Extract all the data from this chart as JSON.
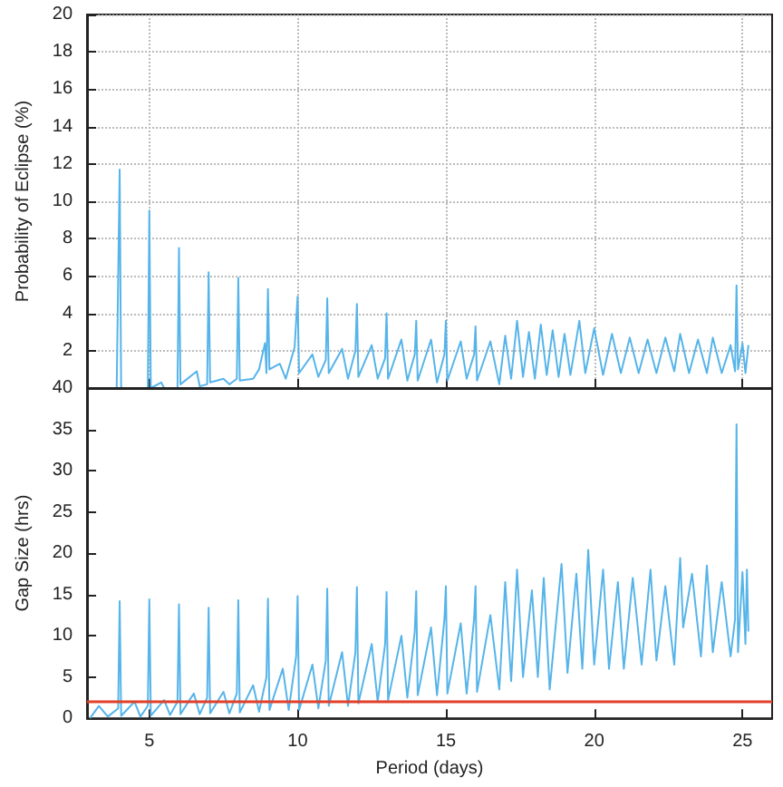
{
  "chart_data": [
    {
      "type": "line",
      "ylabel": "Probability of Eclipse (%)",
      "xlim": [
        2.9,
        26
      ],
      "xticks": [
        5,
        10,
        15,
        20,
        25
      ],
      "ylim": [
        0,
        20
      ],
      "yticks": [
        {
          "value": 0,
          "label": null
        },
        2,
        4,
        6,
        8,
        10,
        12,
        14,
        16,
        18,
        20
      ],
      "grid": true,
      "tick_labels": "y",
      "marker": "none",
      "series": [
        {
          "color": "#56b4e9",
          "x": [
            3.0,
            3.9,
            4.0,
            4.05,
            4.95,
            5.0,
            5.05,
            5.4,
            5.5,
            5.95,
            6.0,
            6.05,
            6.6,
            6.7,
            6.95,
            7.0,
            7.05,
            7.5,
            7.7,
            7.95,
            8.0,
            8.05,
            8.5,
            8.7,
            8.9,
            8.95,
            9.0,
            9.05,
            9.4,
            9.6,
            9.9,
            10.0,
            10.05,
            10.5,
            10.7,
            10.95,
            11.0,
            11.05,
            11.5,
            11.7,
            11.95,
            12.0,
            12.05,
            12.5,
            12.7,
            12.95,
            13.0,
            13.05,
            13.5,
            13.7,
            13.95,
            14.0,
            14.05,
            14.5,
            14.7,
            14.95,
            15.0,
            15.05,
            15.5,
            15.7,
            15.95,
            16.0,
            16.05,
            16.5,
            16.8,
            17.0,
            17.2,
            17.4,
            17.6,
            17.8,
            18.0,
            18.2,
            18.4,
            18.6,
            18.8,
            19.0,
            19.2,
            19.5,
            19.7,
            20.0,
            20.3,
            20.6,
            20.9,
            21.2,
            21.5,
            21.8,
            22.1,
            22.4,
            22.7,
            22.9,
            23.2,
            23.5,
            23.8,
            24.0,
            24.3,
            24.6,
            24.75,
            24.8,
            24.85,
            25.0,
            25.1,
            25.2
          ],
          "values": [
            0,
            0,
            11.7,
            0,
            0,
            9.5,
            0,
            0.3,
            0,
            0,
            7.5,
            0.2,
            0.9,
            0.1,
            0.2,
            6.2,
            0.3,
            0.5,
            0.2,
            0.5,
            5.9,
            0.4,
            0.5,
            1.0,
            2.4,
            0.8,
            5.3,
            1.0,
            1.3,
            0.5,
            2.2,
            4.9,
            0.8,
            1.8,
            0.6,
            1.5,
            4.8,
            0.8,
            2.1,
            0.5,
            2.0,
            4.5,
            0.6,
            2.3,
            0.5,
            1.6,
            4.0,
            0.5,
            2.6,
            0.4,
            1.8,
            3.6,
            0.4,
            2.6,
            0.3,
            1.8,
            3.6,
            0.4,
            2.5,
            0.5,
            1.8,
            3.3,
            0.4,
            2.5,
            0.2,
            2.8,
            0.5,
            3.6,
            0.6,
            3.0,
            0.5,
            3.4,
            0.7,
            3.1,
            0.6,
            2.9,
            0.7,
            3.6,
            0.8,
            3.2,
            0.7,
            2.9,
            0.8,
            2.7,
            0.8,
            2.6,
            0.8,
            2.7,
            0.9,
            2.9,
            0.8,
            2.6,
            0.8,
            2.7,
            0.8,
            2.3,
            0.9,
            5.5,
            1.0,
            2.4,
            0.8,
            2.3
          ]
        }
      ]
    },
    {
      "type": "line",
      "xlabel": "Period (days)",
      "ylabel": "Gap Size (hrs)",
      "xlim": [
        2.9,
        26
      ],
      "xticks": [
        5,
        10,
        15,
        20,
        25
      ],
      "ylim": [
        0,
        40
      ],
      "yticks": [
        0,
        5,
        10,
        15,
        20,
        25,
        30,
        35,
        40
      ],
      "grid": false,
      "marker": "none",
      "ref_lines": [
        {
          "axis": "y",
          "value": 2,
          "color": "#e0402a"
        }
      ],
      "series": [
        {
          "color": "#56b4e9",
          "x": [
            3.0,
            3.3,
            3.6,
            3.95,
            4.0,
            4.05,
            4.5,
            4.7,
            4.95,
            5.0,
            5.05,
            5.5,
            5.7,
            5.95,
            6.0,
            6.05,
            6.5,
            6.7,
            6.95,
            7.0,
            7.05,
            7.5,
            7.7,
            7.95,
            8.0,
            8.05,
            8.5,
            8.7,
            8.95,
            9.0,
            9.05,
            9.5,
            9.7,
            9.95,
            10.0,
            10.05,
            10.5,
            10.7,
            10.95,
            11.0,
            11.05,
            11.5,
            11.7,
            11.95,
            12.0,
            12.05,
            12.5,
            12.7,
            12.95,
            13.0,
            13.05,
            13.5,
            13.7,
            13.95,
            14.0,
            14.05,
            14.5,
            14.7,
            14.95,
            15.0,
            15.05,
            15.5,
            15.7,
            15.95,
            16.0,
            16.05,
            16.5,
            16.8,
            17.0,
            17.2,
            17.4,
            17.6,
            17.9,
            18.1,
            18.3,
            18.5,
            18.9,
            19.1,
            19.4,
            19.6,
            19.8,
            20.0,
            20.3,
            20.5,
            20.8,
            21.0,
            21.3,
            21.6,
            21.9,
            22.1,
            22.4,
            22.7,
            22.9,
            23.0,
            23.3,
            23.6,
            23.8,
            24.0,
            24.3,
            24.6,
            24.75,
            24.8,
            24.85,
            25.0,
            25.1,
            25.15,
            25.2
          ],
          "values": [
            0,
            1.5,
            0.2,
            1.2,
            14.2,
            0.3,
            2.0,
            0.2,
            1.5,
            14.4,
            0.3,
            2.2,
            0.4,
            2.0,
            13.8,
            0.5,
            3.0,
            0.5,
            2.5,
            13.4,
            0.6,
            3.2,
            0.6,
            3.0,
            14.3,
            0.7,
            4.0,
            0.8,
            5.0,
            14.5,
            1.0,
            6.0,
            1.0,
            7.5,
            14.8,
            1.0,
            6.5,
            1.2,
            7.0,
            15.7,
            1.5,
            8.0,
            1.5,
            8.0,
            15.9,
            1.8,
            9.0,
            2.0,
            9.0,
            15.3,
            2.2,
            10.0,
            2.5,
            10.5,
            15.4,
            2.8,
            11.0,
            2.8,
            12.0,
            16.0,
            3.0,
            11.5,
            3.0,
            12.0,
            16.0,
            3.2,
            12.5,
            3.5,
            16.5,
            4.5,
            18.0,
            5.0,
            15.5,
            5.0,
            17.0,
            3.5,
            18.7,
            5.5,
            17.5,
            6.0,
            20.4,
            6.5,
            18.0,
            6.0,
            16.5,
            6.0,
            17.0,
            6.5,
            18.0,
            7.0,
            16.0,
            6.5,
            19.4,
            11.0,
            17.5,
            7.5,
            18.5,
            8.0,
            16.5,
            7.5,
            12.0,
            35.6,
            8.0,
            17.7,
            9.0,
            18.0,
            10.5
          ]
        }
      ]
    }
  ]
}
